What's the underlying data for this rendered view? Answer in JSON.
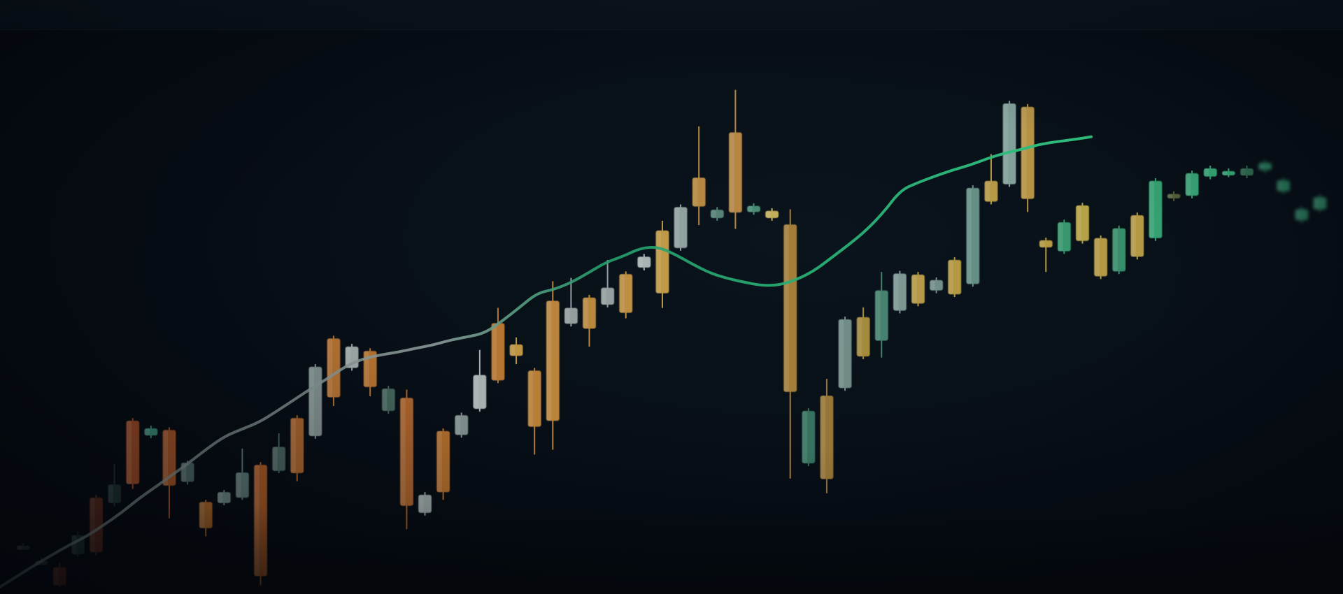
{
  "chart_data": {
    "type": "candlestick",
    "title": "",
    "xlabel": "",
    "ylabel": "",
    "grid": false,
    "ylim": [
      0,
      100
    ],
    "candles": [
      {
        "o": 7.6,
        "c": 7.6,
        "h": 8.0,
        "l": 7.2,
        "color": "#3a4a4a"
      },
      {
        "o": 4.8,
        "c": 4.6,
        "h": 5.4,
        "l": 4.0,
        "color": "#3f4d4d"
      },
      {
        "o": 3.6,
        "c": 0.3,
        "h": 4.4,
        "l": 0.0,
        "color": "#8a3a22"
      },
      {
        "o": 6.0,
        "c": 9.5,
        "h": 10.2,
        "l": 5.5,
        "color": "#2e4a44"
      },
      {
        "o": 16.4,
        "c": 6.4,
        "h": 16.9,
        "l": 5.8,
        "color": "#8a3a22"
      },
      {
        "o": 15.4,
        "c": 18.8,
        "h": 22.6,
        "l": 14.8,
        "color": "#2f4b46"
      },
      {
        "o": 30.5,
        "c": 18.9,
        "h": 31.0,
        "l": 18.0,
        "color": "#a24d26"
      },
      {
        "o": 27.8,
        "c": 29.1,
        "h": 29.6,
        "l": 27.3,
        "color": "#3c8f7a"
      },
      {
        "o": 28.8,
        "c": 18.6,
        "h": 29.3,
        "l": 12.6,
        "color": "#a85628"
      },
      {
        "o": 19.3,
        "c": 22.8,
        "h": 23.2,
        "l": 18.8,
        "color": "#506a66"
      },
      {
        "o": 15.6,
        "c": 10.8,
        "h": 16.0,
        "l": 9.3,
        "color": "#b06a2c"
      },
      {
        "o": 15.4,
        "c": 17.4,
        "h": 17.8,
        "l": 15.0,
        "color": "#6f8a86"
      },
      {
        "o": 16.4,
        "c": 21.0,
        "h": 25.4,
        "l": 16.0,
        "color": "#5f7c78"
      },
      {
        "o": 22.4,
        "c": 2.0,
        "h": 22.9,
        "l": 0.3,
        "color": "#b35f28"
      },
      {
        "o": 21.3,
        "c": 25.7,
        "h": 28.2,
        "l": 20.9,
        "color": "#4e6763"
      },
      {
        "o": 31.0,
        "c": 20.9,
        "h": 31.5,
        "l": 19.4,
        "color": "#b66a2d"
      },
      {
        "o": 27.7,
        "c": 40.4,
        "h": 40.9,
        "l": 27.2,
        "color": "#8a9a98"
      },
      {
        "o": 45.6,
        "c": 34.8,
        "h": 46.1,
        "l": 33.2,
        "color": "#c27a35"
      },
      {
        "o": 40.2,
        "c": 44.1,
        "h": 44.6,
        "l": 39.7,
        "color": "#a9b5b3"
      },
      {
        "o": 43.3,
        "c": 36.7,
        "h": 43.8,
        "l": 35.0,
        "color": "#c17a33"
      },
      {
        "o": 36.4,
        "c": 32.3,
        "h": 36.9,
        "l": 31.8,
        "color": "#476a60"
      },
      {
        "o": 34.7,
        "c": 14.9,
        "h": 36.2,
        "l": 10.6,
        "color": "#b86b2e"
      },
      {
        "o": 16.9,
        "c": 13.6,
        "h": 17.4,
        "l": 13.1,
        "color": "#a7b3b1"
      },
      {
        "o": 28.6,
        "c": 17.4,
        "h": 29.1,
        "l": 16.0,
        "color": "#c0762f"
      },
      {
        "o": 27.9,
        "c": 31.5,
        "h": 32.0,
        "l": 27.4,
        "color": "#8d9e9c"
      },
      {
        "o": 32.7,
        "c": 38.9,
        "h": 43.5,
        "l": 32.2,
        "color": "#b8c2c0"
      },
      {
        "o": 48.4,
        "c": 37.9,
        "h": 51.2,
        "l": 37.4,
        "color": "#c98136"
      },
      {
        "o": 42.4,
        "c": 44.5,
        "h": 45.8,
        "l": 40.9,
        "color": "#d2a246"
      },
      {
        "o": 39.7,
        "c": 29.4,
        "h": 40.2,
        "l": 24.3,
        "color": "#c98b3b"
      },
      {
        "o": 52.5,
        "c": 30.5,
        "h": 56.1,
        "l": 25.2,
        "color": "#ce913f"
      },
      {
        "o": 48.3,
        "c": 51.2,
        "h": 56.7,
        "l": 47.8,
        "color": "#a2aeac"
      },
      {
        "o": 53.1,
        "c": 47.4,
        "h": 53.6,
        "l": 44.1,
        "color": "#cc9743"
      },
      {
        "o": 51.8,
        "c": 54.9,
        "h": 60.0,
        "l": 51.3,
        "color": "#a4b0ae"
      },
      {
        "o": 57.4,
        "c": 50.3,
        "h": 57.9,
        "l": 49.3,
        "color": "#d09d46"
      },
      {
        "o": 58.6,
        "c": 60.6,
        "h": 61.1,
        "l": 58.1,
        "color": "#b9c6c4"
      },
      {
        "o": 65.4,
        "c": 53.9,
        "h": 67.2,
        "l": 51.2,
        "color": "#d3a84c"
      },
      {
        "o": 69.7,
        "c": 62.2,
        "h": 70.2,
        "l": 61.7,
        "color": "#9fb0ae"
      },
      {
        "o": 75.1,
        "c": 69.8,
        "h": 84.5,
        "l": 66.4,
        "color": "#c89444"
      },
      {
        "o": 69.2,
        "c": 67.7,
        "h": 69.7,
        "l": 67.2,
        "color": "#5e8f82"
      },
      {
        "o": 83.4,
        "c": 68.7,
        "h": 91.2,
        "l": 65.7,
        "color": "#c8934a"
      },
      {
        "o": 69.9,
        "c": 68.8,
        "h": 70.4,
        "l": 68.3,
        "color": "#4f9a7f"
      },
      {
        "o": 69.0,
        "c": 67.7,
        "h": 69.5,
        "l": 67.2,
        "color": "#d8c060"
      },
      {
        "o": 66.5,
        "c": 35.8,
        "h": 69.3,
        "l": 19.9,
        "color": "#b48a3e"
      },
      {
        "o": 22.7,
        "c": 32.3,
        "h": 32.8,
        "l": 22.2,
        "color": "#3a7d66"
      },
      {
        "o": 35.1,
        "c": 19.8,
        "h": 38.2,
        "l": 17.2,
        "color": "#a8823a"
      },
      {
        "o": 36.5,
        "c": 49.1,
        "h": 49.6,
        "l": 36.0,
        "color": "#7d9a94"
      },
      {
        "o": 42.3,
        "c": 49.5,
        "h": 51.3,
        "l": 41.8,
        "color": "#b5983f"
      },
      {
        "o": 54.4,
        "c": 45.2,
        "h": 57.8,
        "l": 42.1,
        "color": "#4d8f79"
      },
      {
        "o": 57.5,
        "c": 50.7,
        "h": 58.0,
        "l": 50.2,
        "color": "#8aa6a0"
      },
      {
        "o": 57.3,
        "c": 52.0,
        "h": 57.8,
        "l": 51.5,
        "color": "#c8a84e"
      },
      {
        "o": 54.4,
        "c": 56.3,
        "h": 56.8,
        "l": 53.9,
        "color": "#7e9c96"
      },
      {
        "o": 60.0,
        "c": 53.7,
        "h": 60.5,
        "l": 53.2,
        "color": "#c7a84a"
      },
      {
        "o": 55.6,
        "c": 73.2,
        "h": 73.7,
        "l": 55.1,
        "color": "#6f9c90"
      },
      {
        "o": 74.5,
        "c": 70.7,
        "h": 79.4,
        "l": 70.2,
        "color": "#c9a848"
      },
      {
        "o": 73.9,
        "c": 88.7,
        "h": 89.2,
        "l": 73.4,
        "color": "#8fb0a8"
      },
      {
        "o": 88.1,
        "c": 71.2,
        "h": 88.6,
        "l": 68.8,
        "color": "#c9a248"
      },
      {
        "o": 63.6,
        "c": 62.3,
        "h": 64.1,
        "l": 57.8,
        "color": "#c7a846"
      },
      {
        "o": 61.6,
        "c": 66.9,
        "h": 67.4,
        "l": 61.1,
        "color": "#3ea778"
      },
      {
        "o": 70.0,
        "c": 63.5,
        "h": 70.5,
        "l": 63.0,
        "color": "#c9b24c"
      },
      {
        "o": 64.0,
        "c": 57.0,
        "h": 64.5,
        "l": 56.5,
        "color": "#c7a84a"
      },
      {
        "o": 57.9,
        "c": 65.8,
        "h": 66.3,
        "l": 57.4,
        "color": "#3e9c74"
      },
      {
        "o": 68.2,
        "c": 60.6,
        "h": 68.7,
        "l": 60.1,
        "color": "#c6a84a"
      },
      {
        "o": 64.0,
        "c": 74.5,
        "h": 75.0,
        "l": 63.5,
        "color": "#3ab27d"
      },
      {
        "o": 72.1,
        "c": 71.3,
        "h": 72.6,
        "l": 70.8,
        "color": "#5f6b3a"
      },
      {
        "o": 71.8,
        "c": 75.9,
        "h": 76.4,
        "l": 71.3,
        "color": "#3fb882"
      },
      {
        "o": 75.3,
        "c": 76.8,
        "h": 77.3,
        "l": 74.8,
        "color": "#3cbc84"
      },
      {
        "o": 75.7,
        "c": 76.3,
        "h": 76.8,
        "l": 75.2,
        "color": "#3cbc84"
      },
      {
        "o": 76.8,
        "c": 75.5,
        "h": 77.3,
        "l": 75.0,
        "color": "#4aa878"
      },
      {
        "o": 76.5,
        "c": 77.8,
        "h": 78.3,
        "l": 76.0,
        "color": "#3ec088"
      },
      {
        "o": 72.6,
        "c": 74.6,
        "h": 75.1,
        "l": 72.1,
        "color": "#3ab882"
      },
      {
        "o": 67.3,
        "c": 69.3,
        "h": 69.8,
        "l": 66.8,
        "color": "#3ab482"
      },
      {
        "o": 69.3,
        "c": 71.5,
        "h": 72.0,
        "l": 68.8,
        "color": "#3fbc88"
      }
    ],
    "moving_average": [
      0.0,
      2.0,
      4.0,
      5.9,
      7.7,
      9.3,
      11.4,
      13.6,
      16.2,
      18.4,
      20.7,
      23.0,
      25.5,
      27.7,
      29.0,
      30.3,
      32.3,
      34.4,
      36.5,
      38.4,
      40.6,
      41.9,
      42.6,
      43.1,
      43.8,
      44.4,
      45.3,
      45.9,
      46.6,
      48.8,
      51.3,
      53.9,
      54.6,
      55.9,
      57.7,
      59.6,
      60.7,
      62.2,
      62.4,
      61.0,
      59.2,
      57.6,
      56.6,
      55.9,
      55.3,
      55.4,
      56.4,
      58.0,
      60.4,
      62.8,
      65.4,
      68.7,
      72.8,
      74.2,
      75.4,
      76.5,
      77.4,
      78.6,
      79.6,
      80.3,
      81.2,
      81.7,
      82.1,
      82.6
    ],
    "colors": {
      "bull_cool": "#3ab882",
      "bear_warm": "#b86b2e",
      "ma_line_start": "#8a9a98",
      "ma_line_end": "#2fbf7e",
      "vertical_glow": "#1d7a5a"
    }
  }
}
